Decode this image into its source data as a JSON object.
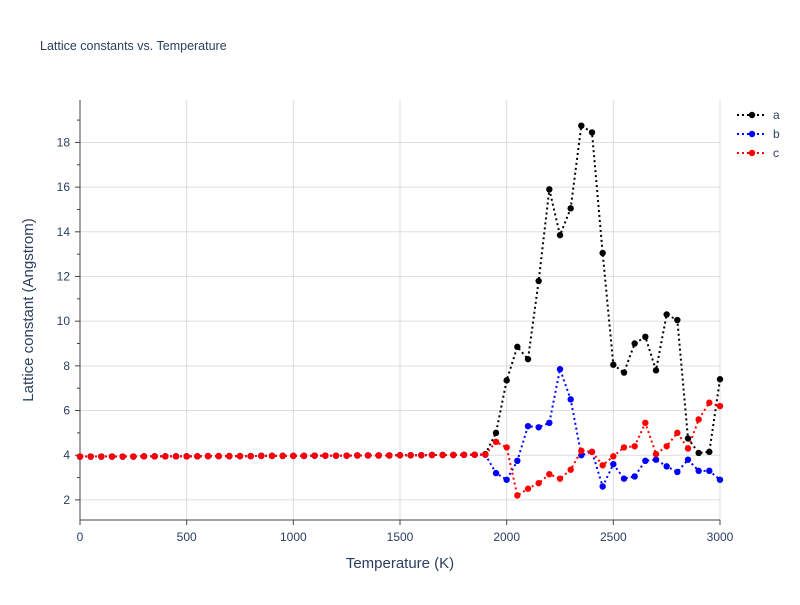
{
  "chart_data": {
    "type": "line",
    "title": "Lattice constants vs. Temperature",
    "xlabel": "Temperature (K)",
    "ylabel": "Lattice constant (Angstrom)",
    "xlim": [
      0,
      3000
    ],
    "ylim": [
      1.1,
      19.9
    ],
    "x_ticks": [
      0,
      500,
      1000,
      1500,
      2000,
      2500,
      3000
    ],
    "y_ticks": [
      2,
      4,
      6,
      8,
      10,
      12,
      14,
      16,
      18
    ],
    "grid": true,
    "legend_position": "top-right",
    "x": [
      0,
      50,
      100,
      150,
      200,
      250,
      300,
      350,
      400,
      450,
      500,
      550,
      600,
      650,
      700,
      750,
      800,
      850,
      900,
      950,
      1000,
      1050,
      1100,
      1150,
      1200,
      1250,
      1300,
      1350,
      1400,
      1450,
      1500,
      1550,
      1600,
      1650,
      1700,
      1750,
      1800,
      1850,
      1900,
      1950,
      2000,
      2050,
      2100,
      2150,
      2200,
      2250,
      2300,
      2350,
      2400,
      2450,
      2500,
      2550,
      2600,
      2650,
      2700,
      2750,
      2800,
      2850,
      2900,
      2950,
      3000
    ],
    "series": [
      {
        "name": "a",
        "color": "#000000",
        "values": [
          3.94,
          3.94,
          3.94,
          3.94,
          3.94,
          3.94,
          3.95,
          3.95,
          3.95,
          3.95,
          3.95,
          3.95,
          3.96,
          3.96,
          3.96,
          3.96,
          3.96,
          3.97,
          3.97,
          3.97,
          3.97,
          3.97,
          3.98,
          3.98,
          3.98,
          3.98,
          3.99,
          3.99,
          3.99,
          3.99,
          4.0,
          4.0,
          4.0,
          4.01,
          4.01,
          4.01,
          4.02,
          4.02,
          4.05,
          5.0,
          7.35,
          8.85,
          8.3,
          11.8,
          15.9,
          13.85,
          15.05,
          18.75,
          18.45,
          13.05,
          8.05,
          7.7,
          9.0,
          9.3,
          7.8,
          10.3,
          10.05,
          4.75,
          4.1,
          4.15,
          7.4
        ]
      },
      {
        "name": "b",
        "color": "#0000ff",
        "values": [
          3.94,
          3.94,
          3.94,
          3.94,
          3.94,
          3.94,
          3.95,
          3.95,
          3.95,
          3.95,
          3.95,
          3.95,
          3.96,
          3.96,
          3.96,
          3.96,
          3.96,
          3.97,
          3.97,
          3.97,
          3.97,
          3.97,
          3.98,
          3.98,
          3.98,
          3.98,
          3.99,
          3.99,
          3.99,
          3.99,
          4.0,
          4.0,
          4.0,
          4.01,
          4.01,
          4.01,
          4.02,
          4.02,
          4.02,
          3.2,
          2.9,
          3.75,
          5.3,
          5.25,
          5.45,
          7.85,
          6.5,
          4.0,
          4.15,
          2.6,
          3.6,
          2.95,
          3.05,
          3.75,
          3.8,
          3.5,
          3.25,
          3.8,
          3.3,
          3.3,
          2.9
        ]
      },
      {
        "name": "c",
        "color": "#ff0000",
        "values": [
          3.94,
          3.94,
          3.94,
          3.94,
          3.94,
          3.94,
          3.95,
          3.95,
          3.95,
          3.95,
          3.95,
          3.95,
          3.96,
          3.96,
          3.96,
          3.96,
          3.96,
          3.97,
          3.97,
          3.97,
          3.97,
          3.97,
          3.98,
          3.98,
          3.98,
          3.98,
          3.99,
          3.99,
          3.99,
          3.99,
          4.0,
          4.0,
          4.0,
          4.01,
          4.01,
          4.01,
          4.02,
          4.02,
          4.03,
          4.6,
          4.35,
          2.2,
          2.5,
          2.75,
          3.15,
          2.95,
          3.35,
          4.2,
          4.15,
          3.55,
          3.95,
          4.35,
          4.4,
          5.45,
          4.05,
          4.4,
          5.0,
          4.3,
          5.6,
          6.35,
          6.2
        ]
      }
    ]
  }
}
